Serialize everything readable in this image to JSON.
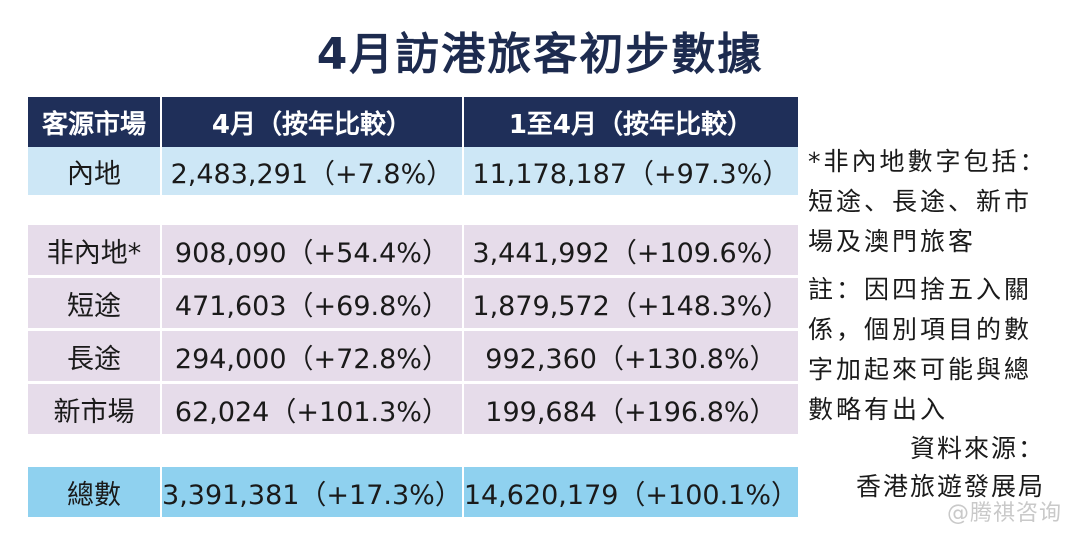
{
  "title": "4月訪港旅客初步數據",
  "table": {
    "headers": [
      "客源市場",
      "4月（按年比較）",
      "1至4月（按年比較）"
    ],
    "rows": [
      {
        "market": "內地",
        "april": "2,483,291（+7.8%）",
        "jan_apr": "11,178,187（+97.3%）"
      },
      {
        "market": "非內地*",
        "april": "908,090（+54.4%）",
        "jan_apr": "3,441,992（+109.6%）"
      },
      {
        "market": "短途",
        "april": "471,603（+69.8%）",
        "jan_apr": "1,879,572（+148.3%）"
      },
      {
        "market": "長途",
        "april": "294,000（+72.8%）",
        "jan_apr": "992,360（+130.8%）"
      },
      {
        "market": "新市場",
        "april": "62,024（+101.3%）",
        "jan_apr": "199,684（+196.8%）"
      }
    ],
    "total": {
      "market": "總數",
      "april": "3,391,381（+17.3%）",
      "jan_apr": "14,620,179（+100.1%）"
    }
  },
  "notes": {
    "non_mainland": "*非內地數字包括：短途、長途、新市場及澳門旅客",
    "rounding": "註：因四捨五入關係，個別項目的數字加起來可能與總數略有出入"
  },
  "source": {
    "label": "資料來源：",
    "org": "香港旅遊發展局"
  },
  "watermark": "@腾祺咨询"
}
